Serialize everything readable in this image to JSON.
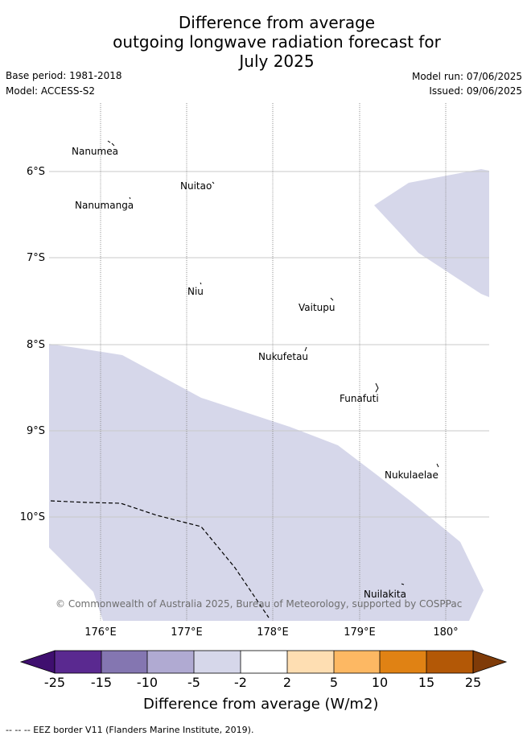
{
  "title": {
    "line1": "Difference from average",
    "line2": "outgoing longwave radiation forecast for",
    "line3": "July 2025"
  },
  "meta": {
    "base_period": "Base period: 1981-2018",
    "model": "Model: ACCESS-S2",
    "model_run": "Model run: 07/06/2025",
    "issued": "Issued: 09/06/2025"
  },
  "map": {
    "lat_labels": [
      "6°S",
      "7°S",
      "8°S",
      "9°S",
      "10°S"
    ],
    "lon_labels": [
      "176°E",
      "177°E",
      "178°E",
      "179°E",
      "180°"
    ],
    "islands": [
      "Nanumea",
      "Nuitao",
      "Nanumanga",
      "Niu",
      "Vaitupu",
      "Nukufetau",
      "Funafuti",
      "Nukulaelae",
      "Nuilakita"
    ],
    "anomaly_fill_color": "#d6d7ea",
    "copyright": "© Commonwealth of Australia 2025, Bureau of Meteorology, supported by COSPPac"
  },
  "colorbar": {
    "ticks": [
      "-25",
      "-15",
      "-10",
      "-5",
      "-2",
      "2",
      "5",
      "10",
      "15",
      "25"
    ],
    "colors": [
      "#3f0f6f",
      "#5a2990",
      "#8476b1",
      "#b0aad2",
      "#d6d7ea",
      "#ffffff",
      "#fedeb2",
      "#fdb863",
      "#e08214",
      "#b35806",
      "#7f3b08"
    ],
    "label": "Difference from average (W/m2)"
  },
  "footnote": "--  --  -- EEZ border V11 (Flanders Marine Institute, 2019)."
}
